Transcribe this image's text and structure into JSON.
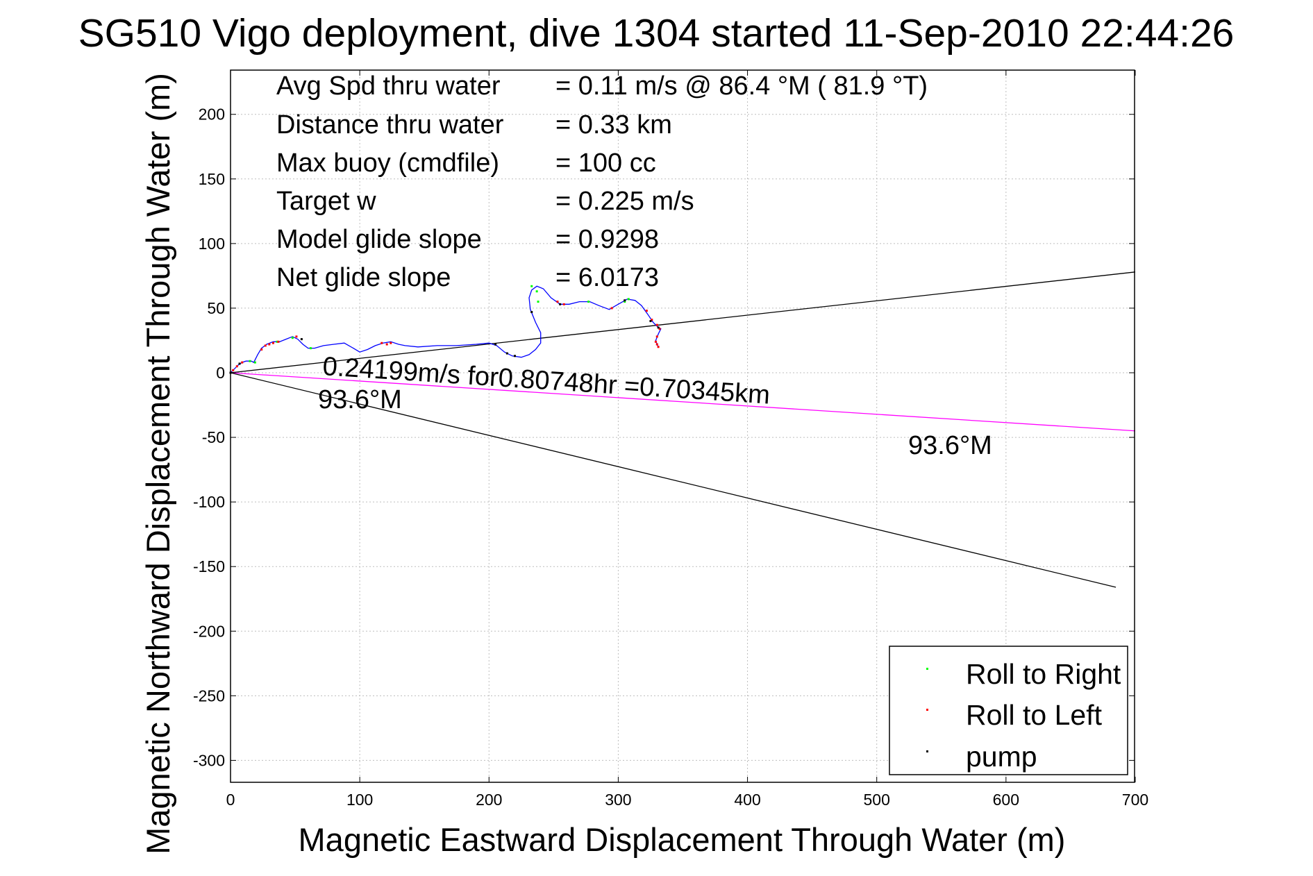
{
  "chart_data": {
    "type": "line",
    "title": "SG510 Vigo deployment, dive 1304 started 11-Sep-2010 22:44:26",
    "xlabel": "Magnetic Eastward Displacement Through Water (m)",
    "ylabel": "Magnetic Northward Displacement Through Water (m)",
    "xlim": [
      0,
      700
    ],
    "ylim": [
      -320,
      235
    ],
    "xticks": [
      0,
      100,
      200,
      300,
      400,
      500,
      600,
      700
    ],
    "yticks": [
      200,
      150,
      100,
      50,
      0,
      -50,
      -100,
      -150,
      -200,
      -250,
      -300
    ],
    "grid": true,
    "legend_position": "bottom-right",
    "stats": [
      {
        "label": "Avg Spd thru water",
        "value": "=  0.11 m/s @  86.4 °M ( 81.9 °T)"
      },
      {
        "label": "Distance thru water",
        "value": "=  0.33 km"
      },
      {
        "label": "Max buoy (cmdfile)",
        "value": "= 100 cc"
      },
      {
        "label": "Target w",
        "value": "= 0.225 m/s"
      },
      {
        "label": "Model glide slope",
        "value": "= 0.9298"
      },
      {
        "label": "Net glide slope",
        "value": "= 6.0173"
      }
    ],
    "annotations": {
      "speed_line": "0.24199m/s for0.80748hr =0.70345km",
      "heading_left": "93.6°M",
      "heading_right": "93.6°M"
    },
    "lines": [
      {
        "from": [
          0,
          0
        ],
        "to": [
          700,
          -45
        ],
        "color": "#ff00ff"
      },
      {
        "from": [
          0,
          0
        ],
        "to": [
          700,
          78
        ],
        "color": "#000000"
      },
      {
        "from": [
          0,
          0
        ],
        "to": [
          685,
          -166
        ],
        "color": "#000000"
      }
    ],
    "track": {
      "color": "#0000ff",
      "x": [
        0,
        3,
        6,
        9,
        12,
        16,
        18,
        21,
        24,
        28,
        33,
        38,
        43,
        48,
        52,
        56,
        60,
        65,
        72,
        80,
        88,
        95,
        100,
        106,
        112,
        118,
        124,
        130,
        135,
        145,
        160,
        175,
        190,
        200,
        206,
        212,
        218,
        225,
        231,
        236,
        240,
        240,
        236,
        232,
        231,
        233,
        237,
        242,
        248,
        255,
        262,
        270,
        278,
        285,
        293,
        300,
        307,
        313,
        318,
        323,
        327,
        330,
        333,
        331,
        329,
        330,
        331
      ],
      "y": [
        0,
        3,
        6,
        8,
        9,
        9,
        8,
        14,
        19,
        22,
        24,
        24,
        26,
        28,
        26,
        22,
        19,
        19,
        21,
        22,
        23,
        19,
        16,
        18,
        21,
        23,
        24,
        22,
        21,
        20,
        21,
        21,
        22,
        23,
        21,
        16,
        13,
        12,
        14,
        18,
        23,
        31,
        39,
        49,
        58,
        64,
        67,
        65,
        58,
        53,
        53,
        55,
        55,
        52,
        49,
        53,
        57,
        56,
        52,
        45,
        39,
        36,
        34,
        30,
        25,
        22,
        20
      ]
    },
    "markers": [
      {
        "name": "Roll to Right",
        "color": "#00ff00",
        "points": [
          [
            15,
            9
          ],
          [
            19,
            8
          ],
          [
            36,
            24
          ],
          [
            48,
            27
          ],
          [
            62,
            19
          ],
          [
            238,
            55
          ],
          [
            237,
            63
          ],
          [
            233,
            67
          ],
          [
            277,
            55
          ],
          [
            305,
            55
          ],
          [
            308,
            57
          ]
        ]
      },
      {
        "name": "Roll to Left",
        "color": "#ff0000",
        "points": [
          [
            2,
            2
          ],
          [
            5,
            5
          ],
          [
            9,
            8
          ],
          [
            24,
            18
          ],
          [
            27,
            21
          ],
          [
            30,
            22
          ],
          [
            33,
            23
          ],
          [
            37,
            24
          ],
          [
            51,
            28
          ],
          [
            117,
            23
          ],
          [
            121,
            22
          ],
          [
            124,
            23
          ],
          [
            253,
            55
          ],
          [
            258,
            53
          ],
          [
            295,
            50
          ],
          [
            322,
            48
          ],
          [
            326,
            41
          ],
          [
            330,
            37
          ],
          [
            332,
            34
          ],
          [
            330,
            28
          ],
          [
            329,
            24
          ],
          [
            330,
            22
          ],
          [
            331,
            20
          ]
        ]
      },
      {
        "name": "pump",
        "color": "#000000",
        "points": [
          [
            0,
            0
          ],
          [
            7,
            7
          ],
          [
            55,
            26
          ],
          [
            205,
            22
          ],
          [
            214,
            15
          ],
          [
            220,
            13
          ],
          [
            233,
            47
          ],
          [
            255,
            53
          ],
          [
            305,
            56
          ],
          [
            325,
            40
          ],
          [
            331,
            35
          ]
        ]
      }
    ]
  }
}
